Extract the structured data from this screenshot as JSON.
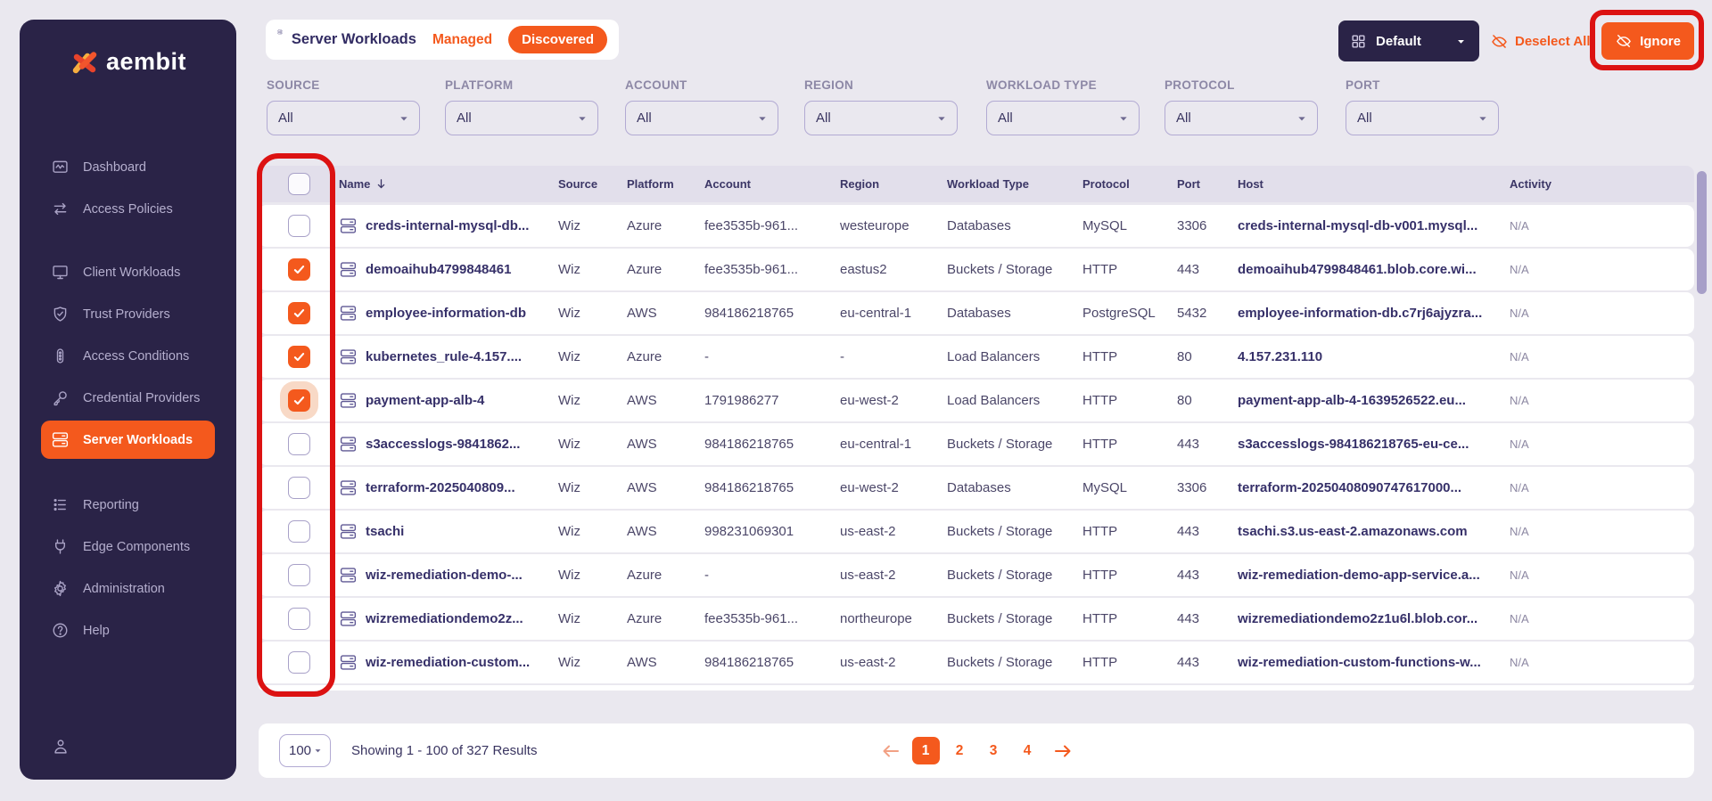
{
  "brand": {
    "name": "aembit"
  },
  "sidebar": {
    "groups": [
      {
        "items": [
          {
            "label": "Dashboard",
            "icon": "dashboard-icon"
          },
          {
            "label": "Access Policies",
            "icon": "access-policies-icon"
          }
        ]
      },
      {
        "items": [
          {
            "label": "Client Workloads",
            "icon": "client-workloads-icon"
          },
          {
            "label": "Trust Providers",
            "icon": "trust-providers-icon"
          },
          {
            "label": "Access Conditions",
            "icon": "access-conditions-icon"
          },
          {
            "label": "Credential Providers",
            "icon": "credential-providers-icon"
          },
          {
            "label": "Server Workloads",
            "icon": "server-workloads-icon",
            "active": true
          }
        ]
      },
      {
        "items": [
          {
            "label": "Reporting",
            "icon": "reporting-icon"
          },
          {
            "label": "Edge Components",
            "icon": "edge-components-icon"
          },
          {
            "label": "Administration",
            "icon": "administration-icon"
          },
          {
            "label": "Help",
            "icon": "help-icon"
          }
        ]
      }
    ]
  },
  "header": {
    "title": "Server Workloads",
    "tabs": [
      {
        "label": "Managed",
        "active": false
      },
      {
        "label": "Discovered",
        "active": true
      }
    ],
    "view_selector_label": "Default",
    "deselect_all_label": "Deselect All",
    "ignore_label": "Ignore"
  },
  "filters": [
    {
      "label": "SOURCE",
      "value": "All"
    },
    {
      "label": "PLATFORM",
      "value": "All"
    },
    {
      "label": "ACCOUNT",
      "value": "All"
    },
    {
      "label": "REGION",
      "value": "All"
    },
    {
      "label": "WORKLOAD TYPE",
      "value": "All"
    },
    {
      "label": "PROTOCOL",
      "value": "All"
    },
    {
      "label": "PORT",
      "value": "All"
    }
  ],
  "table": {
    "columns": [
      "Name",
      "Source",
      "Platform",
      "Account",
      "Region",
      "Workload Type",
      "Protocol",
      "Port",
      "Host",
      "Activity"
    ],
    "sorted_column": "Name",
    "rows": [
      {
        "checked": false,
        "highlight": false,
        "name": "creds-internal-mysql-db...",
        "source": "Wiz",
        "platform": "Azure",
        "account": "fee3535b-961...",
        "region": "westeurope",
        "workload_type": "Databases",
        "protocol": "MySQL",
        "port": "3306",
        "host": "creds-internal-mysql-db-v001.mysql...",
        "activity": "N/A"
      },
      {
        "checked": true,
        "highlight": false,
        "name": "demoaihub4799848461",
        "source": "Wiz",
        "platform": "Azure",
        "account": "fee3535b-961...",
        "region": "eastus2",
        "workload_type": "Buckets / Storage",
        "protocol": "HTTP",
        "port": "443",
        "host": "demoaihub4799848461.blob.core.wi...",
        "activity": "N/A"
      },
      {
        "checked": true,
        "highlight": false,
        "name": "employee-information-db",
        "source": "Wiz",
        "platform": "AWS",
        "account": "984186218765",
        "region": "eu-central-1",
        "workload_type": "Databases",
        "protocol": "PostgreSQL",
        "port": "5432",
        "host": "employee-information-db.c7rj6ajyzra...",
        "activity": "N/A"
      },
      {
        "checked": true,
        "highlight": false,
        "name": "kubernetes_rule-4.157....",
        "source": "Wiz",
        "platform": "Azure",
        "account": "-",
        "region": "-",
        "workload_type": "Load Balancers",
        "protocol": "HTTP",
        "port": "80",
        "host": "4.157.231.110",
        "activity": "N/A"
      },
      {
        "checked": true,
        "highlight": true,
        "name": "payment-app-alb-4",
        "source": "Wiz",
        "platform": "AWS",
        "account": "1791986277",
        "region": "eu-west-2",
        "workload_type": "Load Balancers",
        "protocol": "HTTP",
        "port": "80",
        "host": "payment-app-alb-4-1639526522.eu...",
        "activity": "N/A"
      },
      {
        "checked": false,
        "highlight": false,
        "name": "s3accesslogs-9841862...",
        "source": "Wiz",
        "platform": "AWS",
        "account": "984186218765",
        "region": "eu-central-1",
        "workload_type": "Buckets / Storage",
        "protocol": "HTTP",
        "port": "443",
        "host": "s3accesslogs-984186218765-eu-ce...",
        "activity": "N/A"
      },
      {
        "checked": false,
        "highlight": false,
        "name": "terraform-2025040809...",
        "source": "Wiz",
        "platform": "AWS",
        "account": "984186218765",
        "region": "eu-west-2",
        "workload_type": "Databases",
        "protocol": "MySQL",
        "port": "3306",
        "host": "terraform-20250408090747617000...",
        "activity": "N/A"
      },
      {
        "checked": false,
        "highlight": false,
        "name": "tsachi",
        "source": "Wiz",
        "platform": "AWS",
        "account": "998231069301",
        "region": "us-east-2",
        "workload_type": "Buckets / Storage",
        "protocol": "HTTP",
        "port": "443",
        "host": "tsachi.s3.us-east-2.amazonaws.com",
        "activity": "N/A"
      },
      {
        "checked": false,
        "highlight": false,
        "name": "wiz-remediation-demo-...",
        "source": "Wiz",
        "platform": "Azure",
        "account": "-",
        "region": "us-east-2",
        "workload_type": "Buckets / Storage",
        "protocol": "HTTP",
        "port": "443",
        "host": "wiz-remediation-demo-app-service.a...",
        "activity": "N/A"
      },
      {
        "checked": false,
        "highlight": false,
        "name": "wizremediationdemo2z...",
        "source": "Wiz",
        "platform": "Azure",
        "account": "fee3535b-961...",
        "region": "northeurope",
        "workload_type": "Buckets / Storage",
        "protocol": "HTTP",
        "port": "443",
        "host": "wizremediationdemo2z1u6l.blob.cor...",
        "activity": "N/A"
      },
      {
        "checked": false,
        "highlight": false,
        "name": "wiz-remediation-custom...",
        "source": "Wiz",
        "platform": "AWS",
        "account": "984186218765",
        "region": "us-east-2",
        "workload_type": "Buckets / Storage",
        "protocol": "HTTP",
        "port": "443",
        "host": "wiz-remediation-custom-functions-w...",
        "activity": "N/A"
      }
    ]
  },
  "pagination": {
    "page_size": "100",
    "summary": "Showing 1 - 100 of 327 Results",
    "pages": [
      "1",
      "2",
      "3",
      "4"
    ],
    "current_page": "1"
  },
  "colors": {
    "accent_orange": "#F4591D",
    "sidebar_bg": "#2A2347",
    "page_bg": "#EAE8EF",
    "table_header_bg": "#E2DFEB",
    "annotation_red": "#DC1212",
    "text_dark": "#363069"
  }
}
